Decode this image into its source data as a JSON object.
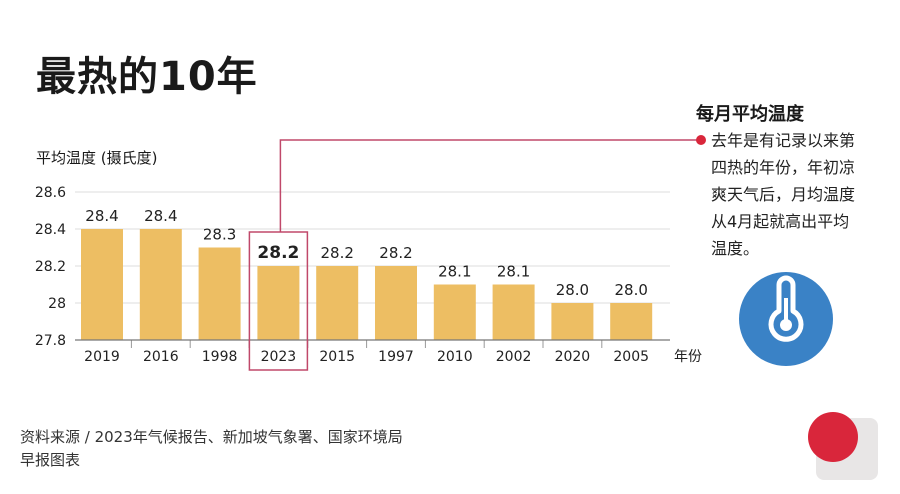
{
  "title": "最热的10年",
  "source": {
    "line1": "资料来源 / 2023年气候报告、新加坡气象署、国家环境局",
    "line2": "早报图表"
  },
  "sidebar": {
    "heading": "每月平均温度",
    "text": "去年是有记录以来第四热的年份，年初凉爽天气后，月均温度从4月起就高出平均温度。"
  },
  "colors": {
    "bar": "#EDBE63",
    "highlight": "#C0486A",
    "icon_bg": "#3A82C6",
    "dot": "#D9263B"
  },
  "icon": "thermometer-icon",
  "chart_data": {
    "type": "bar",
    "ylabel": "平均温度 (摄氏度)",
    "xlabel": "年份",
    "categories": [
      "2019",
      "2016",
      "1998",
      "2023",
      "2015",
      "1997",
      "2010",
      "2002",
      "2020",
      "2005"
    ],
    "values": [
      28.4,
      28.4,
      28.3,
      28.2,
      28.2,
      28.2,
      28.1,
      28.1,
      28.0,
      28.0
    ],
    "value_labels": [
      "28.4",
      "28.4",
      "28.3",
      "28.2",
      "28.2",
      "28.2",
      "28.1",
      "28.1",
      "28.0",
      "28.0"
    ],
    "yticks": [
      "27.8",
      "28",
      "28.2",
      "28.4",
      "28.6"
    ],
    "ylim": [
      27.8,
      28.6
    ],
    "highlight": "2023",
    "grid": true
  }
}
